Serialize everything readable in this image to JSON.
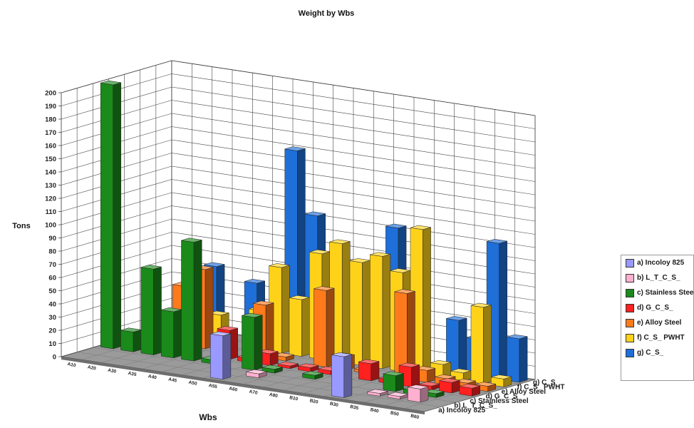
{
  "chart_data": {
    "type": "bar",
    "title": "Weight by Wbs",
    "xlabel": "Wbs",
    "ylabel": "Tons",
    "ylim": [
      0,
      200
    ],
    "yticks": [
      0,
      10,
      20,
      30,
      40,
      50,
      60,
      70,
      80,
      90,
      100,
      110,
      120,
      130,
      140,
      150,
      160,
      170,
      180,
      190,
      200
    ],
    "categories": [
      "A10",
      "A20",
      "A30",
      "A35",
      "A40",
      "A45",
      "A50",
      "A55",
      "A60",
      "A70",
      "A80",
      "B10",
      "B20",
      "B30",
      "B35",
      "B40",
      "B50",
      "B60"
    ],
    "depth_labels": [
      "a) Incoloy 825",
      "b) L_T_C_S_",
      "c) Stainless Steel",
      "d) G_C_S_",
      "e) Alloy Steel",
      "f) C_S_ PWHT",
      "g) C_S_"
    ],
    "series": [
      {
        "name": "a) Incoloy 825",
        "color": "#9999ff",
        "values": [
          0,
          0,
          0,
          0,
          0,
          0,
          0,
          33,
          0,
          0,
          0,
          0,
          0,
          31,
          0,
          0,
          0,
          0
        ]
      },
      {
        "name": "b) L_T_C_S_",
        "color": "#ffb0d0",
        "values": [
          0,
          0,
          0,
          0,
          0,
          0,
          0,
          0,
          3,
          0,
          0,
          0,
          0,
          0,
          2,
          2,
          10,
          0
        ]
      },
      {
        "name": "c) Stainless Steel",
        "color": "#1a8a1a",
        "values": [
          200,
          15,
          65,
          35,
          90,
          3,
          0,
          40,
          3,
          0,
          3,
          0,
          0,
          0,
          12,
          3,
          3,
          0
        ]
      },
      {
        "name": "d) G_C_S_",
        "color": "#ff2020",
        "values": [
          0,
          0,
          0,
          20,
          0,
          22,
          3,
          9,
          2,
          3,
          3,
          0,
          13,
          3,
          15,
          3,
          8,
          6
        ]
      },
      {
        "name": "e) Alloy Steel",
        "color": "#ff7a1a",
        "values": [
          0,
          0,
          45,
          60,
          0,
          0,
          40,
          3,
          0,
          58,
          10,
          2,
          0,
          65,
          9,
          5,
          4,
          4
        ]
      },
      {
        "name": "f) C_S_ PWHT",
        "color": "#ffd21a",
        "values": [
          0,
          0,
          0,
          22,
          0,
          30,
          65,
          43,
          80,
          90,
          78,
          85,
          75,
          110,
          10,
          6,
          58,
          6
        ]
      },
      {
        "name": "g) C_S_",
        "color": "#1e6fd8",
        "values": [
          0,
          40,
          53,
          0,
          45,
          0,
          150,
          103,
          0,
          50,
          0,
          103,
          30,
          0,
          40,
          28,
          103,
          33
        ]
      }
    ],
    "legend": {
      "position": "right",
      "entries": [
        "a) Incoloy 825",
        "b) L_T_C_S_",
        "c) Stainless Steel",
        "d) G_C_S_",
        "e) Alloy Steel",
        "f) C_S_ PWHT",
        "g) C_S_"
      ]
    },
    "grid": true
  }
}
